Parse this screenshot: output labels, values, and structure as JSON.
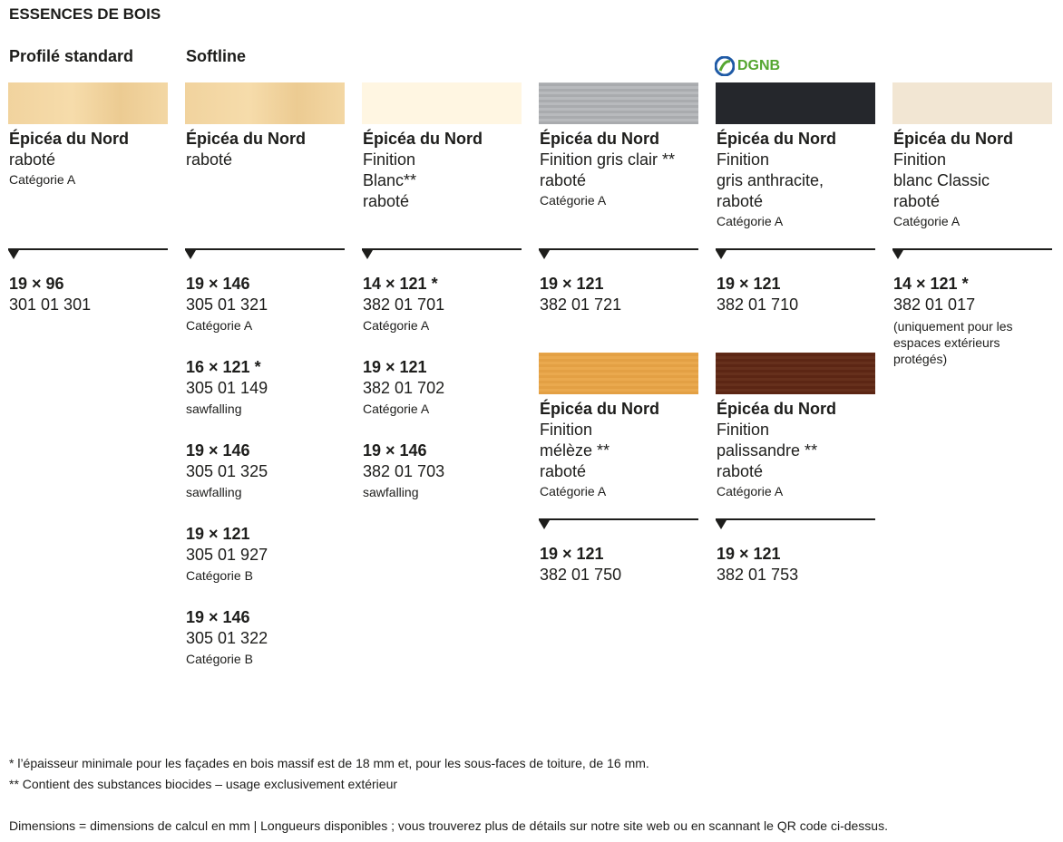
{
  "title": "ESSENCES DE BOIS",
  "headings": [
    "Profilé standard",
    "Softline"
  ],
  "badge": "DGNB",
  "columns": [
    {
      "products": [
        {
          "name": "Épicéa du Nord",
          "lines": [
            "raboté"
          ],
          "category": "Catégorie A",
          "variants": [
            {
              "size": "19 × 96",
              "code": "301 01 301"
            }
          ]
        }
      ]
    },
    {
      "products": [
        {
          "name": "Épicéa du Nord",
          "lines": [
            "raboté"
          ],
          "variants": [
            {
              "size": "19 × 146",
              "code": "305 01 321",
              "note": "Catégorie A"
            },
            {
              "size": "16 × 121 *",
              "code": "305 01 149",
              "note": "sawfalling"
            },
            {
              "size": "19 × 146",
              "code": "305 01 325",
              "note": "sawfalling"
            },
            {
              "size": "19 × 121",
              "code": "305 01 927",
              "note": "Catégorie B"
            },
            {
              "size": "19 × 146",
              "code": "305 01 322",
              "note": "Catégorie B"
            }
          ]
        }
      ]
    },
    {
      "products": [
        {
          "name": "Épicéa du Nord",
          "lines": [
            "Finition",
            "Blanc**",
            "raboté"
          ],
          "variants": [
            {
              "size": "14 × 121 *",
              "code": "382 01 701",
              "note": "Catégorie A"
            },
            {
              "size": "19 × 121",
              "code": "382 01 702",
              "note": "Catégorie A"
            },
            {
              "size": "19 × 146",
              "code": "382 01 703",
              "note": "sawfalling"
            }
          ]
        }
      ]
    },
    {
      "products": [
        {
          "name": "Épicéa du Nord",
          "lines": [
            "Finition gris clair **",
            "raboté"
          ],
          "category": "Catégorie A",
          "variants": [
            {
              "size": "19 × 121",
              "code": "382 01 721"
            }
          ]
        },
        {
          "name": "Épicéa du Nord",
          "lines": [
            "Finition",
            "mélèze **",
            "raboté"
          ],
          "category": "Catégorie A",
          "variants": [
            {
              "size": "19 × 121",
              "code": "382 01 750"
            }
          ]
        }
      ]
    },
    {
      "products": [
        {
          "name": "Épicéa du Nord",
          "lines": [
            "Finition",
            "gris anthracite,",
            "raboté"
          ],
          "category": "Catégorie A",
          "variants": [
            {
              "size": "19 × 121",
              "code": "382 01 710"
            }
          ]
        },
        {
          "name": "Épicéa du Nord",
          "lines": [
            "Finition",
            "palissandre **",
            "raboté"
          ],
          "category": "Catégorie A",
          "variants": [
            {
              "size": "19 × 121",
              "code": "382 01 753"
            }
          ]
        }
      ]
    },
    {
      "products": [
        {
          "name": "Épicéa du Nord",
          "lines": [
            "Finition",
            "blanc Classic",
            "raboté"
          ],
          "category": "Catégorie A",
          "variants": [
            {
              "size": "14 × 121 *",
              "code": "382 01 017",
              "note": "(uniquement pour les espaces extérieurs protégés)"
            }
          ]
        }
      ]
    }
  ],
  "footnotes": [
    " * l’épaisseur minimale pour les façades en bois massif est de 18 mm et, pour les sous-faces de toiture, de 16 mm.",
    "** Contient des substances biocides – usage exclusivement extérieur",
    "Dimensions = dimensions de calcul en mm | Longueurs disponibles ; vous trouverez plus de détails sur notre site web ou en scannant le QR code ci-dessus."
  ]
}
